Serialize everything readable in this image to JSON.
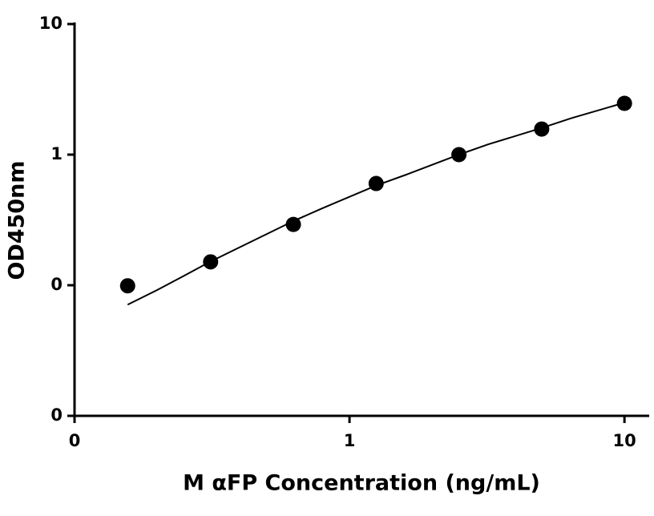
{
  "chart_data": {
    "type": "scatter",
    "xlabel": "M αFP Concentration (ng/mL)",
    "ylabel": "OD450nm",
    "xscale": "log",
    "yscale": "log",
    "xlim": [
      0.1,
      12.3
    ],
    "ylim": [
      0.01,
      10
    ],
    "xticks": [
      {
        "value": 0.1,
        "label": "0"
      },
      1,
      10
    ],
    "yticks": [
      {
        "value": 0.01,
        "label": "0"
      },
      {
        "value": 0.1,
        "label": "0"
      },
      1,
      10
    ],
    "series": [
      {
        "color": "#000000",
        "mode": "markers",
        "x": [
          0.156,
          0.3125,
          0.625,
          1.25,
          2.5,
          5,
          10
        ],
        "values": [
          0.099,
          0.151,
          0.292,
          0.601,
          1.0,
          1.57,
          2.47
        ]
      },
      {
        "color": "#000000",
        "mode": "line",
        "x": [
          0.156,
          0.2,
          0.25,
          0.3125,
          0.4,
          0.625,
          0.8,
          1.25,
          1.6,
          2.5,
          3.2,
          5,
          6.4,
          10
        ],
        "values": [
          0.071,
          0.092,
          0.118,
          0.152,
          0.196,
          0.31,
          0.39,
          0.58,
          0.7,
          1.0,
          1.2,
          1.6,
          1.9,
          2.5
        ]
      }
    ]
  }
}
